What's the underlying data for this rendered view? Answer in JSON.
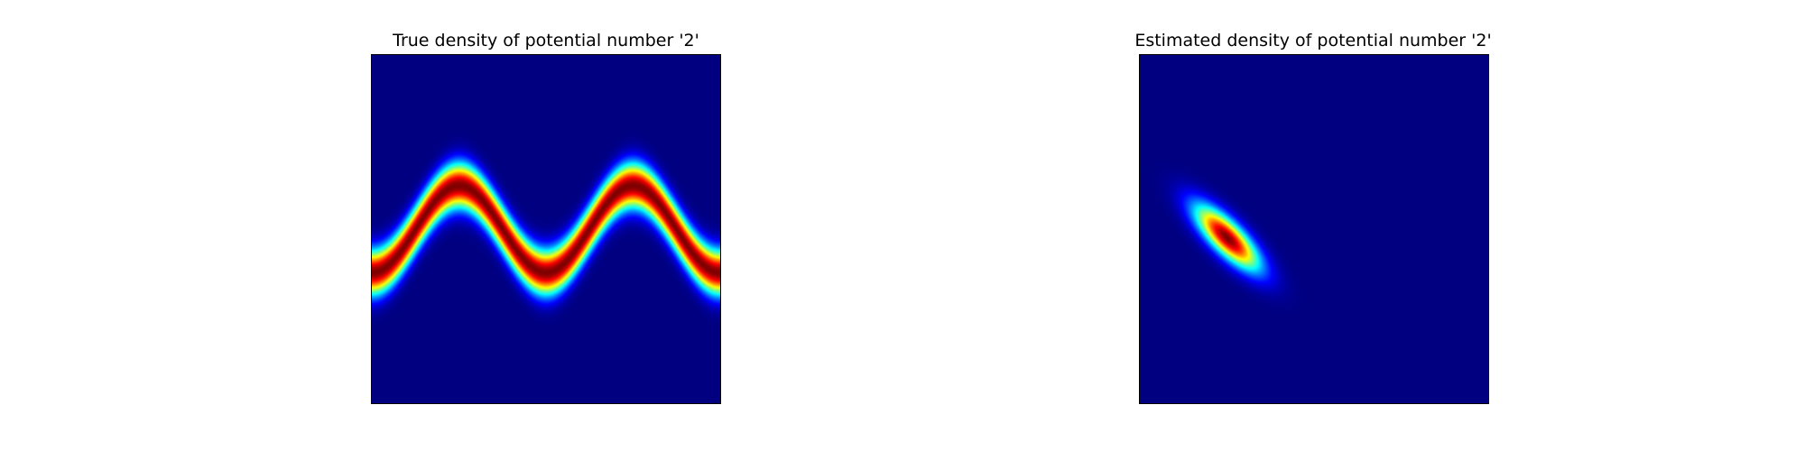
{
  "chart_data": [
    {
      "type": "heatmap",
      "title": "True density of potential number '2'",
      "xlabel": "",
      "ylabel": "",
      "axes_ticks": "off",
      "grid": false,
      "colormap": "jet",
      "density": "sinusoidal band (two full periods across the domain)"
    },
    {
      "type": "heatmap",
      "title": "Estimated density of potential number '2'",
      "xlabel": "",
      "ylabel": "",
      "axes_ticks": "off",
      "grid": false,
      "colormap": "jet",
      "density": "single elongated gaussian blob oriented diagonally (upper-left to lower-right)"
    }
  ],
  "colors": {
    "background": "#ffffff",
    "colormap_low": "#000080",
    "colormap_high": "#800000"
  }
}
